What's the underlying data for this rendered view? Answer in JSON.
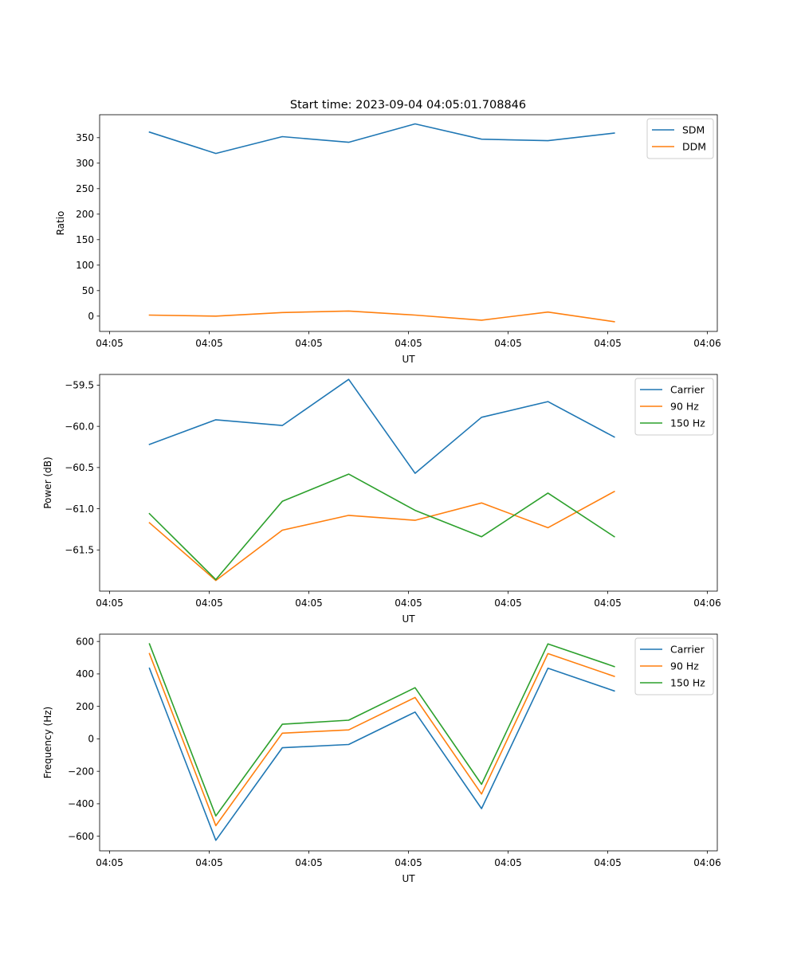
{
  "figure_title": "Start time: 2023-09-04 04:05:01.708846",
  "colors": {
    "blue": "#1f77b4",
    "orange": "#ff7f0e",
    "green": "#2ca02c"
  },
  "chart_data": [
    {
      "type": "line",
      "title": "Start time: 2023-09-04 04:05:01.708846",
      "xlabel": "UT",
      "ylabel": "Ratio",
      "xlim": [
        -0.35,
        8.95
      ],
      "ylim": [
        -30,
        395
      ],
      "x": [
        0.4,
        1.4,
        2.4,
        3.4,
        4.4,
        5.4,
        6.4,
        7.4
      ],
      "xtick_values": [
        -0.2,
        1.3,
        2.8,
        4.3,
        5.8,
        7.3,
        8.8
      ],
      "xtick_labels": [
        "04:05",
        "04:05",
        "04:05",
        "04:05",
        "04:05",
        "04:05",
        "04:06"
      ],
      "ytick_values": [
        0,
        50,
        100,
        150,
        200,
        250,
        300,
        350
      ],
      "ytick_labels": [
        "0",
        "50",
        "100",
        "150",
        "200",
        "250",
        "300",
        "350"
      ],
      "legend_position": "top-right",
      "series": [
        {
          "name": "SDM",
          "color": "#1f77b4",
          "values": [
            361,
            319,
            352,
            341,
            377,
            347,
            344,
            359
          ]
        },
        {
          "name": "DDM",
          "color": "#ff7f0e",
          "values": [
            2,
            0,
            7,
            10,
            2,
            -8,
            8,
            -11
          ]
        }
      ]
    },
    {
      "type": "line",
      "title": "",
      "xlabel": "UT",
      "ylabel": "Power (dB)",
      "xlim": [
        -0.35,
        8.95
      ],
      "ylim": [
        -62.0,
        -59.37
      ],
      "x": [
        0.4,
        1.4,
        2.4,
        3.4,
        4.4,
        5.4,
        6.4,
        7.4
      ],
      "xtick_values": [
        -0.2,
        1.3,
        2.8,
        4.3,
        5.8,
        7.3,
        8.8
      ],
      "xtick_labels": [
        "04:05",
        "04:05",
        "04:05",
        "04:05",
        "04:05",
        "04:05",
        "04:06"
      ],
      "ytick_values": [
        -61.5,
        -61.0,
        -60.5,
        -60.0,
        -59.5
      ],
      "ytick_labels": [
        "−61.5",
        "−61.0",
        "−60.5",
        "−60.0",
        "−59.5"
      ],
      "legend_position": "top-right",
      "series": [
        {
          "name": "Carrier",
          "color": "#1f77b4",
          "values": [
            -60.22,
            -59.92,
            -59.99,
            -59.43,
            -60.57,
            -59.89,
            -59.7,
            -60.13
          ]
        },
        {
          "name": "90 Hz",
          "color": "#ff7f0e",
          "values": [
            -61.17,
            -61.87,
            -61.26,
            -61.08,
            -61.14,
            -60.93,
            -61.23,
            -60.79
          ]
        },
        {
          "name": "150 Hz",
          "color": "#2ca02c",
          "values": [
            -61.06,
            -61.86,
            -60.91,
            -60.58,
            -61.02,
            -61.34,
            -60.81,
            -61.34
          ]
        }
      ]
    },
    {
      "type": "line",
      "title": "",
      "xlabel": "UT",
      "ylabel": "Frequency (Hz)",
      "xlim": [
        -0.35,
        8.95
      ],
      "ylim": [
        -690,
        645
      ],
      "x": [
        0.4,
        1.4,
        2.4,
        3.4,
        4.4,
        5.4,
        6.4,
        7.4
      ],
      "xtick_values": [
        -0.2,
        1.3,
        2.8,
        4.3,
        5.8,
        7.3,
        8.8
      ],
      "xtick_labels": [
        "04:05",
        "04:05",
        "04:05",
        "04:05",
        "04:05",
        "04:05",
        "04:06"
      ],
      "ytick_values": [
        -600,
        -400,
        -200,
        0,
        200,
        400,
        600
      ],
      "ytick_labels": [
        "−600",
        "−400",
        "−200",
        "0",
        "200",
        "400",
        "600"
      ],
      "legend_position": "top-right",
      "series": [
        {
          "name": "Carrier",
          "color": "#1f77b4",
          "values": [
            435,
            -625,
            -55,
            -35,
            165,
            -430,
            435,
            295
          ]
        },
        {
          "name": "90 Hz",
          "color": "#ff7f0e",
          "values": [
            525,
            -535,
            35,
            55,
            255,
            -340,
            525,
            385
          ]
        },
        {
          "name": "150 Hz",
          "color": "#2ca02c",
          "values": [
            585,
            -475,
            90,
            115,
            315,
            -280,
            585,
            445
          ]
        }
      ]
    }
  ]
}
